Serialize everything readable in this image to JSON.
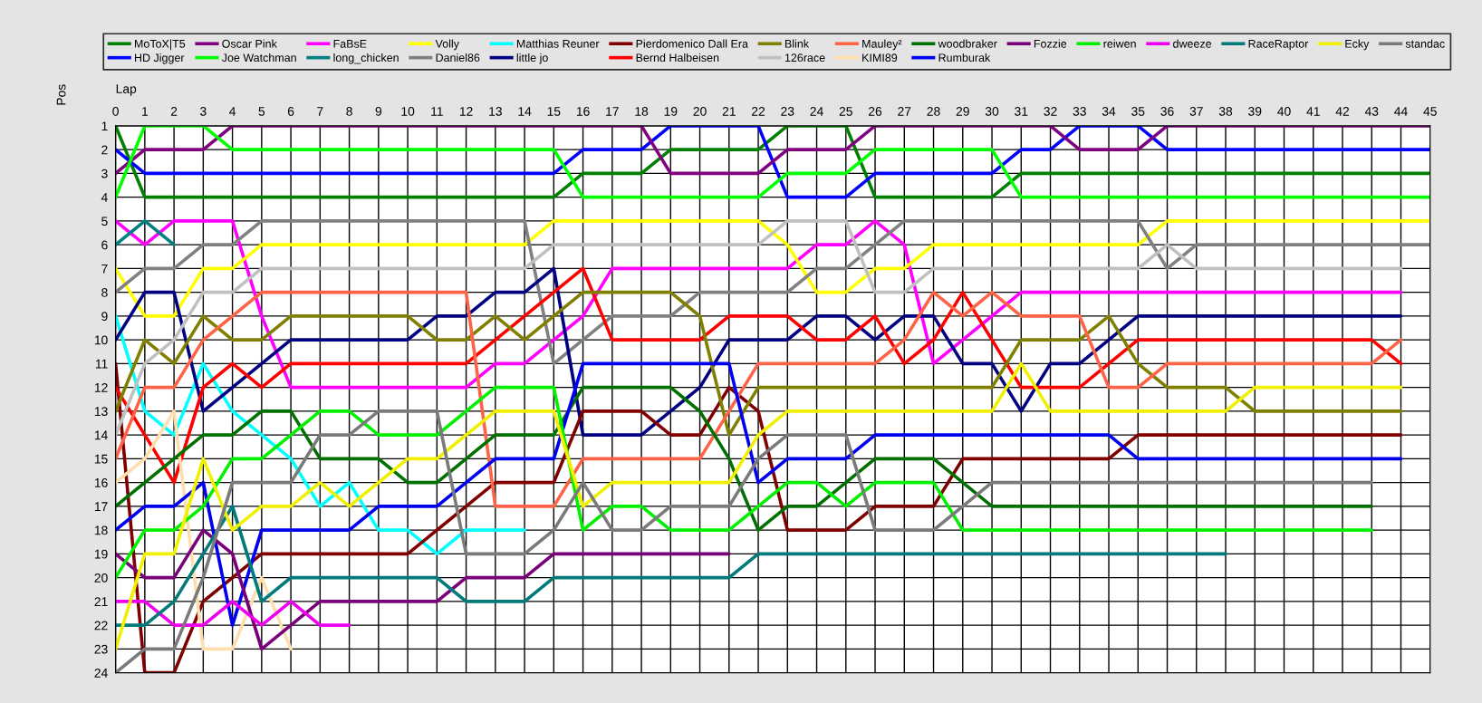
{
  "chart_data": {
    "type": "line",
    "xlabel": "Lap",
    "ylabel": "Pos",
    "grid": true,
    "legend": "top left",
    "x": [
      0,
      1,
      2,
      3,
      4,
      5,
      6,
      7,
      8,
      9,
      10,
      11,
      12,
      13,
      14,
      15,
      16,
      17,
      18,
      19,
      20,
      21,
      22,
      23,
      24,
      25,
      26,
      27,
      28,
      29,
      30,
      31,
      32,
      33,
      34,
      35,
      36,
      37,
      38,
      39,
      40,
      41,
      42,
      43,
      44,
      45
    ],
    "xlim": [
      0,
      45
    ],
    "xticks": [
      0,
      1,
      2,
      3,
      4,
      5,
      6,
      7,
      8,
      9,
      10,
      11,
      12,
      13,
      14,
      15,
      16,
      17,
      18,
      19,
      20,
      21,
      22,
      23,
      24,
      25,
      26,
      27,
      28,
      29,
      30,
      31,
      32,
      33,
      34,
      35,
      36,
      37,
      38,
      39,
      40,
      41,
      42,
      43,
      44,
      45
    ],
    "ylim": [
      24,
      1
    ],
    "yticks": [
      1,
      2,
      3,
      4,
      5,
      6,
      7,
      8,
      9,
      10,
      11,
      12,
      13,
      14,
      15,
      16,
      17,
      18,
      19,
      20,
      21,
      22,
      23,
      24
    ],
    "series": [
      {
        "name": "MoToX|T5",
        "color": "#008000",
        "values": [
          1,
          4,
          4,
          4,
          4,
          4,
          4,
          4,
          4,
          4,
          4,
          4,
          4,
          4,
          4,
          4,
          3,
          3,
          3,
          2,
          2,
          2,
          2,
          1,
          1,
          1,
          4,
          4,
          4,
          4,
          4,
          3,
          3,
          3,
          3,
          3,
          3,
          3,
          3,
          3,
          3,
          3,
          3,
          3,
          3,
          3
        ]
      },
      {
        "name": "HD Jigger",
        "color": "#0000ff",
        "values": [
          2,
          3,
          3,
          3,
          3,
          3,
          3,
          3,
          3,
          3,
          3,
          3,
          3,
          3,
          3,
          3,
          2,
          2,
          2,
          1,
          1,
          1,
          1,
          4,
          4,
          4,
          3,
          3,
          3,
          3,
          3,
          2,
          2,
          1,
          1,
          1,
          2,
          2,
          2,
          2,
          2,
          2,
          2,
          2,
          2,
          2
        ]
      },
      {
        "name": "Oscar Pink",
        "color": "#800080",
        "values": [
          3,
          2,
          2,
          2,
          1,
          1,
          1,
          1,
          1,
          1,
          1,
          1,
          1,
          1,
          1,
          1,
          1,
          1,
          1,
          3,
          3,
          3,
          3,
          2,
          2,
          2,
          1,
          1,
          1,
          1,
          1,
          1,
          1,
          2,
          2,
          2,
          1,
          1,
          1,
          1,
          1,
          1,
          1,
          1,
          1,
          1
        ]
      },
      {
        "name": "Joe Watchman",
        "color": "#00ff00",
        "values": [
          4,
          1,
          1,
          1,
          2,
          2,
          2,
          2,
          2,
          2,
          2,
          2,
          2,
          2,
          2,
          2,
          4,
          4,
          4,
          4,
          4,
          4,
          4,
          3,
          3,
          3,
          2,
          2,
          2,
          2,
          2,
          4,
          4,
          4,
          4,
          4,
          4,
          4,
          4,
          4,
          4,
          4,
          4,
          4,
          4,
          4
        ]
      },
      {
        "name": "FaBsE",
        "color": "#ff00ff",
        "values": [
          5,
          6,
          5,
          5,
          5,
          9,
          12,
          12,
          12,
          12,
          12,
          12,
          12,
          11,
          11,
          10,
          9,
          7,
          7,
          7,
          7,
          7,
          7,
          7,
          6,
          6,
          5,
          6,
          11,
          10,
          9,
          8,
          8,
          8,
          8,
          8,
          8,
          8,
          8,
          8,
          8,
          8,
          8,
          8,
          8,
          null
        ]
      },
      {
        "name": "long_chicken",
        "color": "#008080",
        "values": [
          6,
          5,
          6,
          null,
          null,
          null,
          null,
          null,
          null,
          null,
          null,
          null,
          null,
          null,
          null,
          null,
          null,
          null,
          null,
          null,
          null,
          null,
          null,
          null,
          null,
          null,
          null,
          null,
          null,
          null,
          null,
          null,
          null,
          null,
          null,
          null,
          null,
          null,
          null,
          null,
          null,
          null,
          null,
          null,
          null,
          null
        ]
      },
      {
        "name": "Volly",
        "color": "#ffff00",
        "values": [
          7,
          9,
          9,
          7,
          7,
          6,
          6,
          6,
          6,
          6,
          6,
          6,
          6,
          6,
          6,
          5,
          5,
          5,
          5,
          5,
          5,
          5,
          5,
          6,
          8,
          8,
          7,
          7,
          6,
          6,
          6,
          6,
          6,
          6,
          6,
          6,
          5,
          5,
          5,
          5,
          5,
          5,
          5,
          5,
          5,
          5
        ]
      },
      {
        "name": "Daniel86",
        "color": "#808080",
        "values": [
          8,
          7,
          7,
          6,
          6,
          5,
          5,
          5,
          5,
          5,
          5,
          5,
          5,
          5,
          5,
          11,
          10,
          9,
          9,
          9,
          8,
          8,
          8,
          8,
          7,
          7,
          6,
          5,
          5,
          5,
          5,
          5,
          5,
          5,
          5,
          5,
          7,
          6,
          6,
          6,
          6,
          6,
          6,
          6,
          6,
          6
        ]
      },
      {
        "name": "Matthias Reuner",
        "color": "#00ffff",
        "values": [
          9,
          13,
          14,
          11,
          13,
          14,
          15,
          17,
          16,
          18,
          18,
          19,
          18,
          18,
          18,
          null,
          null,
          null,
          null,
          null,
          null,
          null,
          null,
          null,
          null,
          null,
          null,
          null,
          null,
          null,
          null,
          null,
          null,
          null,
          null,
          null,
          null,
          null,
          null,
          null,
          null,
          null,
          null,
          null,
          null,
          null
        ]
      },
      {
        "name": "little jo",
        "color": "#000080",
        "values": [
          10,
          8,
          8,
          13,
          12,
          11,
          10,
          10,
          10,
          10,
          10,
          9,
          9,
          8,
          8,
          7,
          14,
          14,
          14,
          13,
          12,
          10,
          10,
          10,
          9,
          9,
          10,
          9,
          9,
          11,
          11,
          13,
          11,
          11,
          10,
          9,
          9,
          9,
          9,
          9,
          9,
          9,
          9,
          9,
          9,
          null
        ]
      },
      {
        "name": "Pierdomenico Dall Era",
        "color": "#800000",
        "values": [
          11,
          24,
          24,
          21,
          20,
          19,
          19,
          19,
          19,
          19,
          19,
          18,
          17,
          16,
          16,
          16,
          13,
          13,
          13,
          14,
          14,
          12,
          13,
          18,
          18,
          18,
          17,
          17,
          17,
          15,
          15,
          15,
          15,
          15,
          15,
          14,
          14,
          14,
          14,
          14,
          14,
          14,
          14,
          14,
          14,
          null
        ]
      },
      {
        "name": "Bernd Halbeisen",
        "color": "#ff0000",
        "values": [
          12,
          14,
          16,
          12,
          11,
          12,
          11,
          11,
          11,
          11,
          11,
          11,
          11,
          10,
          9,
          8,
          7,
          10,
          10,
          10,
          10,
          9,
          9,
          9,
          10,
          10,
          9,
          11,
          10,
          8,
          10,
          12,
          12,
          12,
          11,
          10,
          10,
          10,
          10,
          10,
          10,
          10,
          10,
          10,
          11,
          null
        ]
      },
      {
        "name": "Blink",
        "color": "#808000",
        "values": [
          13,
          10,
          11,
          9,
          10,
          10,
          9,
          9,
          9,
          9,
          9,
          10,
          10,
          9,
          10,
          9,
          8,
          8,
          8,
          8,
          9,
          14,
          12,
          12,
          12,
          12,
          12,
          12,
          12,
          12,
          12,
          10,
          10,
          10,
          9,
          11,
          12,
          12,
          12,
          13,
          13,
          13,
          13,
          13,
          13,
          null
        ]
      },
      {
        "name": "126race",
        "color": "#c0c0c0",
        "values": [
          14,
          11,
          10,
          8,
          8,
          7,
          7,
          7,
          7,
          7,
          7,
          7,
          7,
          7,
          7,
          6,
          6,
          6,
          6,
          6,
          6,
          6,
          6,
          5,
          5,
          5,
          8,
          8,
          7,
          7,
          7,
          7,
          7,
          7,
          7,
          7,
          6,
          7,
          7,
          7,
          7,
          7,
          7,
          7,
          7,
          null
        ]
      },
      {
        "name": "Mauley²",
        "color": "#ff6347",
        "values": [
          15,
          12,
          12,
          10,
          9,
          8,
          8,
          8,
          8,
          8,
          8,
          8,
          8,
          17,
          17,
          17,
          15,
          15,
          15,
          15,
          15,
          13,
          11,
          11,
          11,
          11,
          11,
          10,
          8,
          9,
          8,
          9,
          9,
          9,
          12,
          12,
          11,
          11,
          11,
          11,
          11,
          11,
          11,
          11,
          10,
          null
        ]
      },
      {
        "name": "KIMI89",
        "color": "#ffdead",
        "values": [
          16,
          15,
          13,
          23,
          23,
          20,
          23,
          null,
          null,
          null,
          null,
          null,
          null,
          null,
          null,
          null,
          null,
          null,
          null,
          null,
          null,
          null,
          null,
          null,
          null,
          null,
          null,
          null,
          null,
          null,
          null,
          null,
          null,
          null,
          null,
          null,
          null,
          null,
          null,
          null,
          null,
          null,
          null,
          null,
          null,
          null
        ]
      },
      {
        "name": "woodbraker",
        "color": "#007000",
        "values": [
          17,
          16,
          15,
          14,
          14,
          13,
          13,
          15,
          15,
          15,
          16,
          16,
          15,
          14,
          14,
          14,
          12,
          12,
          12,
          12,
          13,
          15,
          18,
          17,
          17,
          16,
          15,
          15,
          15,
          16,
          17,
          17,
          17,
          17,
          17,
          17,
          17,
          17,
          17,
          17,
          17,
          17,
          17,
          17,
          null,
          null
        ]
      },
      {
        "name": "Rumburak",
        "color": "#0000f0",
        "values": [
          18,
          17,
          17,
          16,
          22,
          18,
          18,
          18,
          18,
          17,
          17,
          17,
          16,
          15,
          15,
          15,
          11,
          11,
          11,
          11,
          11,
          11,
          16,
          15,
          15,
          15,
          14,
          14,
          14,
          14,
          14,
          14,
          14,
          14,
          14,
          15,
          15,
          15,
          15,
          15,
          15,
          15,
          15,
          15,
          15,
          null
        ]
      },
      {
        "name": "Fozzie",
        "color": "#7a007a",
        "values": [
          19,
          20,
          20,
          18,
          19,
          23,
          22,
          21,
          21,
          21,
          21,
          21,
          20,
          20,
          20,
          19,
          19,
          19,
          19,
          19,
          19,
          19,
          null,
          null,
          null,
          null,
          null,
          null,
          null,
          null,
          null,
          null,
          null,
          null,
          null,
          null,
          null,
          null,
          null,
          null,
          null,
          null,
          null,
          null,
          null,
          null
        ]
      },
      {
        "name": "reiwen",
        "color": "#00f000",
        "values": [
          20,
          18,
          18,
          17,
          15,
          15,
          14,
          13,
          13,
          14,
          14,
          14,
          13,
          12,
          12,
          12,
          18,
          17,
          17,
          18,
          18,
          18,
          17,
          16,
          16,
          17,
          16,
          16,
          16,
          18,
          18,
          18,
          18,
          18,
          18,
          18,
          18,
          18,
          18,
          18,
          18,
          18,
          18,
          18,
          null,
          null
        ]
      },
      {
        "name": "dweeze",
        "color": "#f000f0",
        "values": [
          21,
          21,
          22,
          22,
          21,
          22,
          21,
          22,
          22,
          null,
          null,
          null,
          null,
          null,
          null,
          null,
          null,
          null,
          null,
          null,
          null,
          null,
          null,
          null,
          null,
          null,
          null,
          null,
          null,
          null,
          null,
          null,
          null,
          null,
          null,
          null,
          null,
          null,
          null,
          null,
          null,
          null,
          null,
          null,
          null,
          null
        ]
      },
      {
        "name": "RaceRaptor",
        "color": "#007a7a",
        "values": [
          22,
          22,
          21,
          19,
          17,
          21,
          20,
          20,
          20,
          20,
          20,
          20,
          21,
          21,
          21,
          20,
          20,
          20,
          20,
          20,
          20,
          20,
          19,
          19,
          19,
          19,
          19,
          19,
          19,
          19,
          19,
          19,
          19,
          19,
          19,
          19,
          19,
          19,
          19,
          null,
          null,
          null,
          null,
          null,
          null,
          null
        ]
      },
      {
        "name": "Ecky",
        "color": "#f0f000",
        "values": [
          23,
          19,
          19,
          15,
          18,
          17,
          17,
          16,
          17,
          16,
          15,
          15,
          14,
          13,
          13,
          13,
          17,
          16,
          16,
          16,
          16,
          16,
          14,
          13,
          13,
          13,
          13,
          13,
          13,
          13,
          13,
          11,
          13,
          13,
          13,
          13,
          13,
          13,
          13,
          12,
          12,
          12,
          12,
          12,
          12,
          null
        ]
      },
      {
        "name": "standac",
        "color": "#7a7a7a",
        "values": [
          24,
          23,
          23,
          20,
          16,
          16,
          16,
          14,
          14,
          13,
          13,
          13,
          19,
          19,
          19,
          18,
          16,
          18,
          18,
          17,
          17,
          17,
          15,
          14,
          14,
          14,
          18,
          18,
          18,
          17,
          16,
          16,
          16,
          16,
          16,
          16,
          16,
          16,
          16,
          16,
          16,
          16,
          16,
          16,
          null,
          null
        ]
      }
    ]
  }
}
